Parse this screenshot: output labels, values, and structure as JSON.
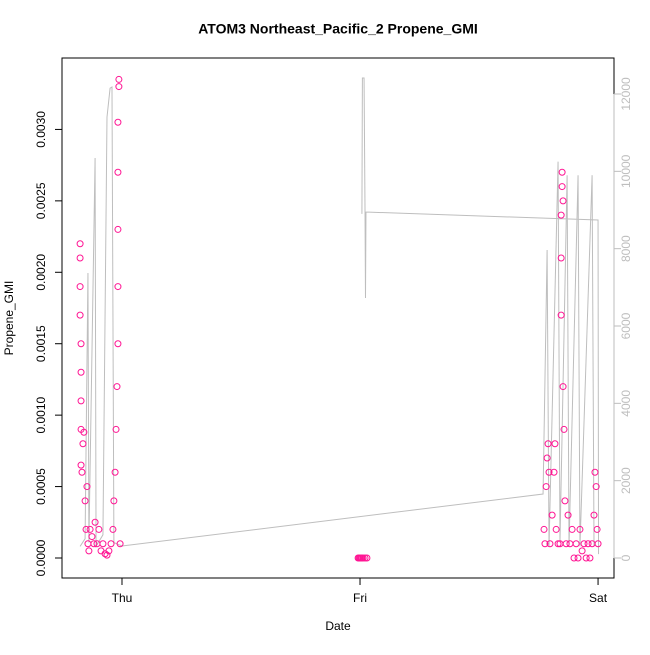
{
  "chart_data": {
    "type": "scatter",
    "title": "ATOM3 Northeast_Pacific_2 Propene_GMI",
    "x_label": "Date",
    "y_label": "Propene_GMI",
    "xlim": [
      -0.252,
      2.067
    ],
    "xticks": [
      {
        "value": 0,
        "label": "Thu"
      },
      {
        "value": 1,
        "label": "Fri"
      },
      {
        "value": 2,
        "label": "Sat"
      }
    ],
    "ylim": [
      -0.00014,
      0.0035
    ],
    "yticks": [
      {
        "value": 0,
        "label": "0.0000"
      },
      {
        "value": 0.0005,
        "label": "0.0005"
      },
      {
        "value": 0.001,
        "label": "0.0010"
      },
      {
        "value": 0.0015,
        "label": "0.0015"
      },
      {
        "value": 0.002,
        "label": "0.0020"
      },
      {
        "value": 0.0025,
        "label": "0.0025"
      },
      {
        "value": 0.003,
        "label": "0.0030"
      }
    ],
    "y2lim": [
      -517,
      12931
    ],
    "y2ticks": [
      0,
      2000,
      4000,
      6000,
      8000,
      10000,
      12000
    ],
    "series": [
      {
        "type": "scatter",
        "color": "#ff1493",
        "x": [
          -0.176,
          -0.176,
          -0.176,
          -0.176,
          -0.172,
          -0.172,
          -0.172,
          -0.172,
          -0.172,
          -0.168,
          -0.164,
          -0.16,
          -0.155,
          -0.151,
          -0.147,
          -0.143,
          -0.139,
          -0.134,
          -0.126,
          -0.118,
          -0.113,
          -0.105,
          -0.097,
          -0.088,
          -0.08,
          -0.071,
          -0.063,
          -0.055,
          -0.046,
          -0.038,
          -0.034,
          -0.029,
          -0.025,
          -0.021,
          -0.017,
          -0.017,
          -0.017,
          -0.017,
          -0.017,
          -0.013,
          -0.013,
          -0.008,
          0.992,
          0.996,
          1.0,
          1.004,
          1.008,
          1.013,
          1.021,
          1.029,
          1.773,
          1.777,
          1.782,
          1.786,
          1.79,
          1.794,
          1.798,
          1.807,
          1.815,
          1.819,
          1.824,
          1.832,
          1.84,
          1.845,
          1.845,
          1.845,
          1.849,
          1.849,
          1.853,
          1.853,
          1.857,
          1.861,
          1.866,
          1.874,
          1.882,
          1.891,
          1.899,
          1.908,
          1.916,
          1.924,
          1.933,
          1.941,
          1.95,
          1.958,
          1.966,
          1.975,
          1.983,
          1.987,
          1.992,
          1.996,
          2.0
        ],
        "values": [
          0.0022,
          0.0021,
          0.0019,
          0.0017,
          0.0015,
          0.0013,
          0.0011,
          0.0009,
          0.00065,
          0.0006,
          0.0008,
          0.00088,
          0.0004,
          0.0002,
          0.0005,
          0.0001,
          5e-05,
          0.0002,
          0.00015,
          0.0001,
          0.00025,
          0.0001,
          0.0002,
          5e-05,
          0.0001,
          3e-05,
          2e-05,
          5e-05,
          0.0001,
          0.0002,
          0.0004,
          0.0006,
          0.0009,
          0.0012,
          0.0015,
          0.0019,
          0.0023,
          0.0027,
          0.00305,
          0.00335,
          0.0033,
          0.0001,
          0,
          0,
          0,
          0,
          0,
          0,
          0,
          0,
          0.0002,
          0.0001,
          0.0005,
          0.0007,
          0.0008,
          0.0006,
          0.0001,
          0.0003,
          0.0006,
          0.0008,
          0.0002,
          0.0001,
          0.0001,
          0.0017,
          0.0021,
          0.0024,
          0.0026,
          0.0027,
          0.0025,
          0.0012,
          0.0009,
          0.0004,
          0.0001,
          0.0003,
          0.0001,
          0.0002,
          0,
          0.0001,
          0,
          0.0002,
          5e-05,
          0.0001,
          0,
          0.0001,
          0,
          0.0001,
          0.0003,
          0.0006,
          0.0005,
          0.0002,
          0.0001
        ]
      },
      {
        "type": "line",
        "axis": "y2",
        "color": "#bebebe",
        "x": [
          -0.176,
          -0.155,
          -0.143,
          -0.139,
          -0.113,
          -0.109,
          -0.08,
          -0.063,
          -0.05,
          -0.042,
          -0.034,
          0.0,
          1.769,
          1.786,
          1.794,
          1.832,
          1.84,
          1.87,
          1.878,
          1.916,
          1.924,
          1.975,
          1.983,
          null,
          1.008,
          1.01,
          1.017,
          1.021,
          1.023,
          1.025,
          2.0,
          2.002
        ],
        "values": [
          300,
          500,
          7370,
          400,
          10345,
          300,
          600,
          11400,
          12150,
          12180,
          400,
          310,
          1655,
          7966,
          300,
          10250,
          400,
          9900,
          300,
          9900,
          300,
          9900,
          300,
          null,
          8900,
          12414,
          12414,
          8948,
          6724,
          8948,
          8741,
          100
        ]
      }
    ]
  }
}
